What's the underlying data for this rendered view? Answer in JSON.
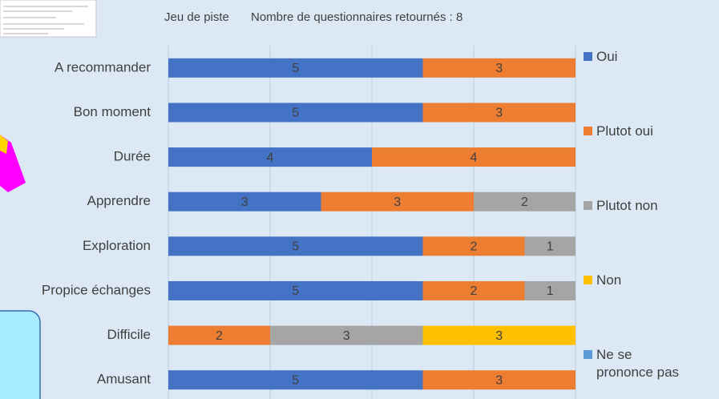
{
  "chart_data": {
    "type": "stacked-bar-horizontal",
    "title": "Jeu de piste",
    "subtitle": "Nombre de questionnaires retournés : 8",
    "categories": [
      "A recommander",
      "Bon moment",
      "Durée",
      "Apprendre",
      "Exploration",
      "Propice échanges",
      "Difficile",
      "Amusant"
    ],
    "series": [
      {
        "name": "Oui",
        "color": "#4472c4",
        "values": [
          5,
          5,
          4,
          3,
          5,
          5,
          null,
          5
        ]
      },
      {
        "name": "Plutot oui",
        "color": "#ed7d31",
        "values": [
          3,
          3,
          4,
          3,
          2,
          2,
          2,
          3
        ]
      },
      {
        "name": "Plutot non",
        "color": "#a5a5a5",
        "values": [
          null,
          null,
          null,
          2,
          1,
          1,
          3,
          null
        ]
      },
      {
        "name": "Non",
        "color": "#ffc000",
        "values": [
          null,
          null,
          null,
          null,
          null,
          null,
          3,
          null
        ]
      },
      {
        "name": "Ne se prononce pas",
        "color": "#5b9bd5",
        "values": [
          null,
          null,
          null,
          null,
          null,
          null,
          null,
          null
        ]
      }
    ],
    "xlim": [
      0,
      8
    ],
    "xticks": [
      0,
      2,
      4,
      6,
      8
    ],
    "grid": true,
    "legend": "right"
  }
}
